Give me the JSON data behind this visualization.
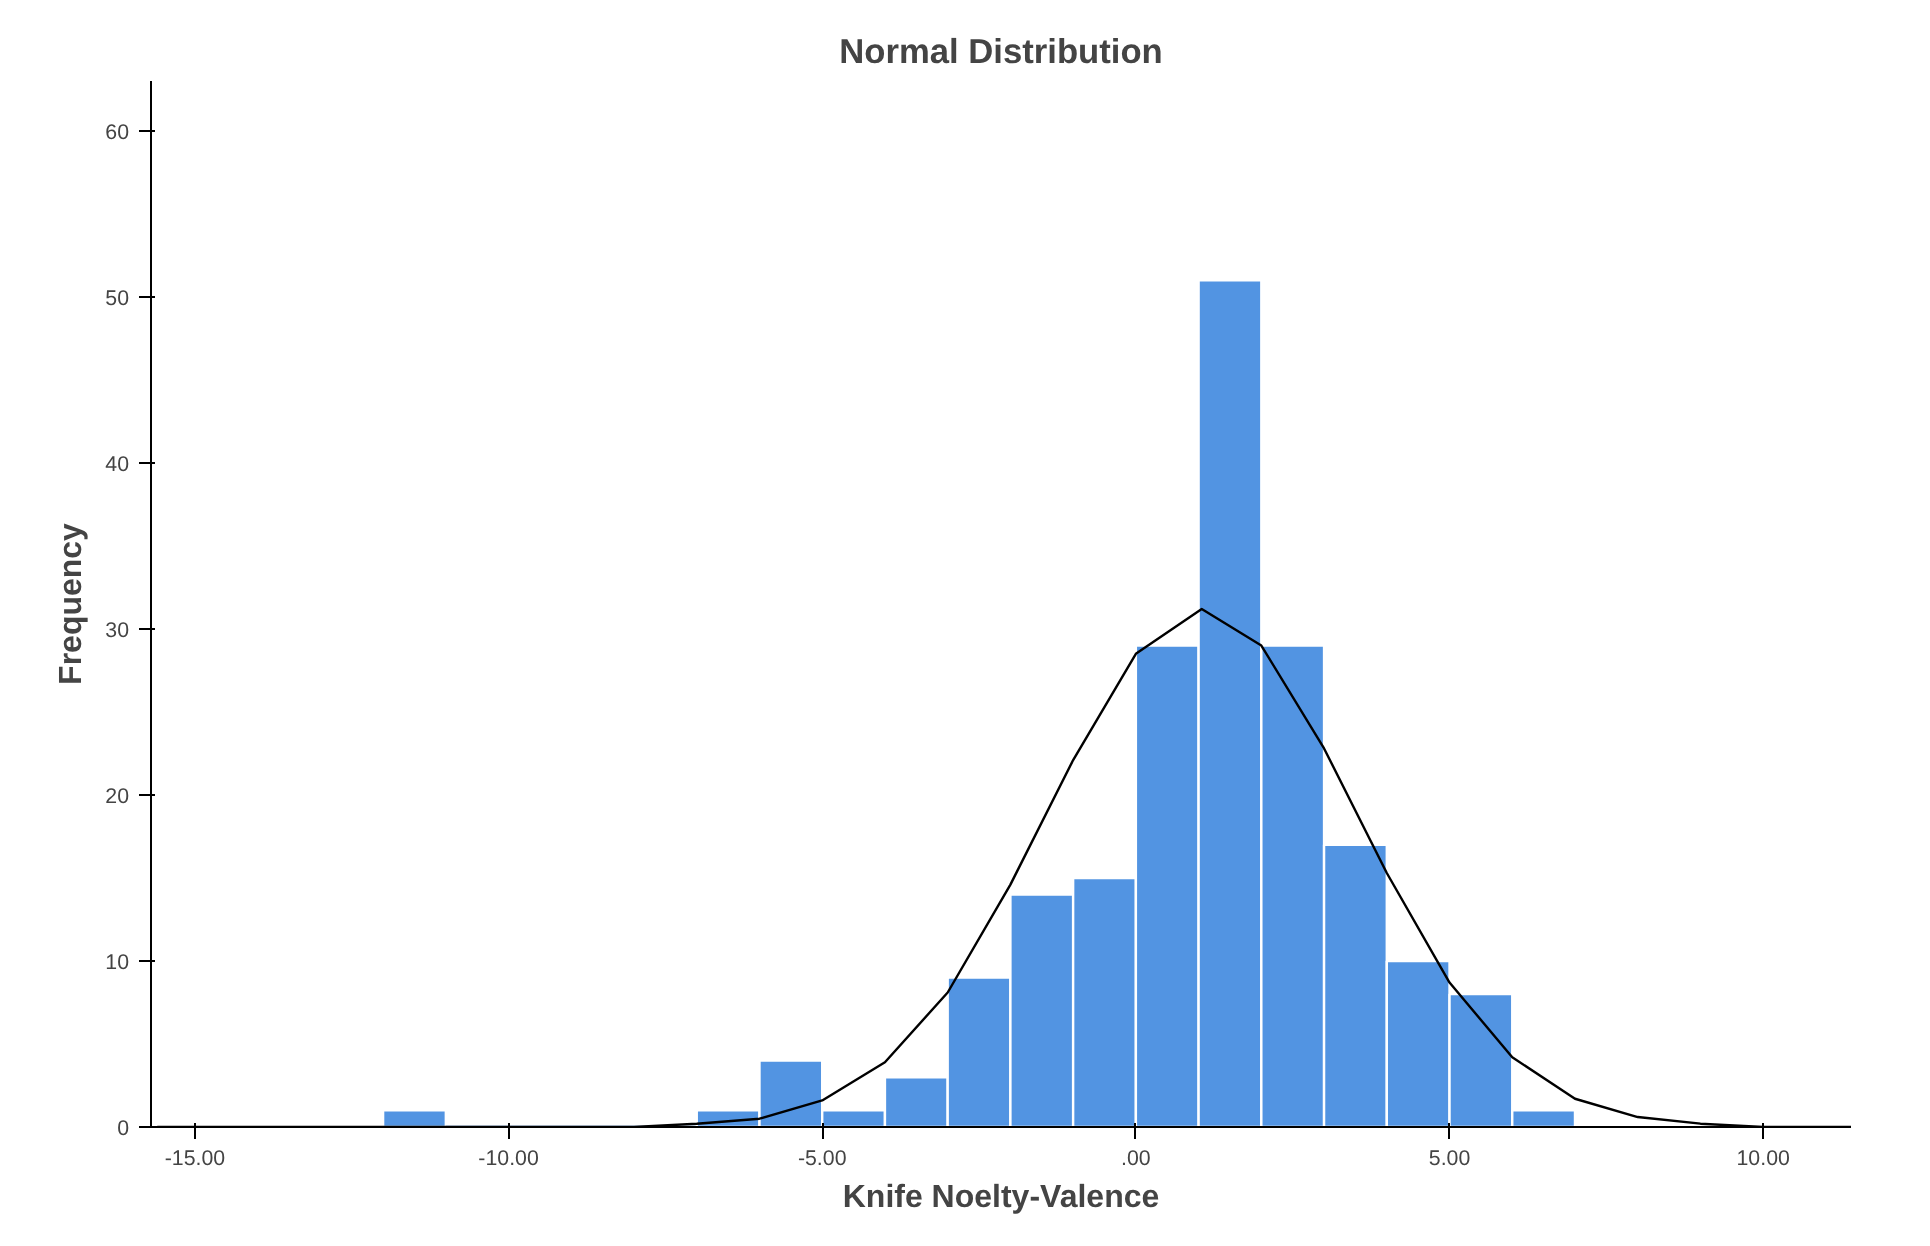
{
  "chart_data": {
    "type": "histogram",
    "title": "Normal Distribution",
    "xlabel": "Knife Noelty-Valence",
    "ylabel": "Frequency",
    "xlim": [
      -15.7,
      11.4
    ],
    "ylim": [
      0,
      63
    ],
    "xticks": [
      {
        "value": -15,
        "label": "-15.00"
      },
      {
        "value": -10,
        "label": "-10.00"
      },
      {
        "value": -5,
        "label": "-5.00"
      },
      {
        "value": 0,
        "label": ".00"
      },
      {
        "value": 5,
        "label": "5.00"
      },
      {
        "value": 10,
        "label": "10.00"
      }
    ],
    "yticks": [
      0,
      10,
      20,
      30,
      40,
      50,
      60
    ],
    "grid": false,
    "series": [
      {
        "color": "#5294e2",
        "bins": [
          -12,
          -11,
          -10,
          -9,
          -8,
          -7,
          -6,
          -5,
          -4,
          -3,
          -2,
          -1,
          0,
          1,
          2,
          3,
          4,
          5,
          6,
          7
        ],
        "values": [
          1,
          0,
          0,
          0,
          0,
          1,
          4,
          1,
          3,
          9,
          14,
          15,
          29,
          51,
          29,
          17,
          10,
          8,
          1
        ]
      },
      {
        "type": "line",
        "color": "#000000",
        "x": [
          -15.6,
          -10,
          -8,
          -7,
          -6,
          -5,
          -4,
          -3,
          -2,
          -1,
          0,
          1.05,
          2,
          3,
          4,
          5,
          6,
          7,
          8,
          9,
          10,
          11.4
        ],
        "values": [
          0,
          0,
          0,
          0.2,
          0.5,
          1.6,
          3.9,
          8.1,
          14.6,
          22.1,
          28.5,
          31.2,
          29,
          22.8,
          15.3,
          8.7,
          4.2,
          1.7,
          0.6,
          0.2,
          0,
          0
        ]
      }
    ]
  }
}
